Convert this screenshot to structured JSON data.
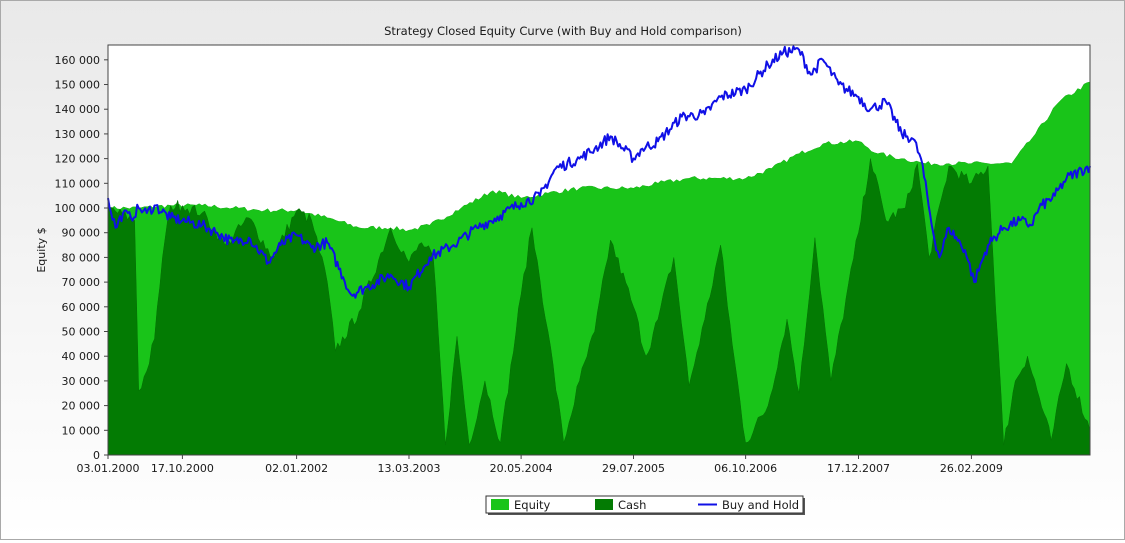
{
  "chart_data": {
    "type": "area",
    "title": "Strategy Closed Equity Curve (with Buy and Hold comparison)",
    "ylabel": "Equity $",
    "xlabel": "",
    "ylim": [
      0,
      166000
    ],
    "yticks": [
      0,
      10000,
      20000,
      30000,
      40000,
      50000,
      60000,
      70000,
      80000,
      90000,
      100000,
      110000,
      120000,
      130000,
      140000,
      150000,
      160000
    ],
    "ytick_labels": [
      "0",
      "10 000",
      "20 000",
      "30 000",
      "40 000",
      "50 000",
      "60 000",
      "70 000",
      "80 000",
      "90 000",
      "100 000",
      "110 000",
      "120 000",
      "130 000",
      "140 000",
      "150 000",
      "160 000"
    ],
    "xlim": [
      "2000-01-03",
      "2010-05-31"
    ],
    "xticks": [
      "2000-01-03",
      "2000-10-17",
      "2002-01-02",
      "2003-03-13",
      "2004-05-20",
      "2005-07-29",
      "2006-10-06",
      "2007-12-17",
      "2009-02-26"
    ],
    "xtick_labels": [
      "03.01.2000",
      "17.10.2000",
      "02.01.2002",
      "13.03.2003",
      "20.05.2004",
      "29.07.2005",
      "06.10.2006",
      "17.12.2007",
      "26.02.2009"
    ],
    "grid": false,
    "legend_position": "bottom-center",
    "colors": {
      "equity": "#19c419",
      "cash": "#037b03",
      "buy_and_hold": "#1010e6",
      "plot_background": "#ffffff",
      "axis": "#444444"
    },
    "series": [
      {
        "name": "Equity",
        "kind": "area",
        "x": [
          "2000-01-03",
          "2000-05-01",
          "2000-09-01",
          "2001-01-01",
          "2001-05-01",
          "2001-09-01",
          "2002-01-02",
          "2002-05-01",
          "2002-09-01",
          "2003-01-01",
          "2003-03-13",
          "2003-06-01",
          "2003-10-01",
          "2004-02-01",
          "2004-05-20",
          "2004-09-01",
          "2005-01-01",
          "2005-05-01",
          "2005-07-29",
          "2005-11-01",
          "2006-03-01",
          "2006-07-01",
          "2006-10-06",
          "2007-01-15",
          "2007-05-01",
          "2007-08-01",
          "2007-12-17",
          "2008-03-01",
          "2008-06-01",
          "2008-09-01",
          "2008-12-01",
          "2009-02-26",
          "2009-05-01",
          "2009-08-01",
          "2009-11-01",
          "2010-02-01",
          "2010-05-31"
        ],
        "values": [
          100000,
          100000,
          101000,
          101000,
          100000,
          99000,
          99000,
          96000,
          92000,
          92000,
          91000,
          93000,
          100000,
          107000,
          104000,
          106000,
          108000,
          108000,
          108000,
          110000,
          112000,
          112000,
          112000,
          116000,
          122000,
          126000,
          127000,
          122000,
          120000,
          118000,
          118000,
          118000,
          118000,
          118000,
          130000,
          143000,
          151000
        ]
      },
      {
        "name": "Cash",
        "kind": "area",
        "x": [
          "2000-01-03",
          "2000-04-15",
          "2000-05-01",
          "2000-06-01",
          "2000-07-01",
          "2000-08-01",
          "2000-09-01",
          "2000-10-17",
          "2001-01-01",
          "2001-04-01",
          "2001-07-01",
          "2001-10-01",
          "2002-01-02",
          "2002-03-01",
          "2002-05-01",
          "2002-06-01",
          "2002-09-01",
          "2003-01-01",
          "2003-03-13",
          "2003-05-01",
          "2003-06-15",
          "2003-08-01",
          "2003-09-15",
          "2003-11-01",
          "2004-01-01",
          "2004-03-01",
          "2004-05-20",
          "2004-07-01",
          "2004-09-01",
          "2004-11-01",
          "2005-01-01",
          "2005-03-01",
          "2005-05-01",
          "2005-07-29",
          "2005-09-15",
          "2005-11-01",
          "2006-01-01",
          "2006-03-01",
          "2006-05-01",
          "2006-07-01",
          "2006-08-15",
          "2006-10-06",
          "2007-01-01",
          "2007-03-15",
          "2007-05-01",
          "2007-07-01",
          "2007-09-01",
          "2007-12-17",
          "2008-02-01",
          "2008-04-01",
          "2008-06-15",
          "2008-08-01",
          "2008-09-15",
          "2008-12-01",
          "2009-02-26",
          "2009-05-01",
          "2009-07-01",
          "2009-08-15",
          "2009-10-01",
          "2010-01-01",
          "2010-03-01",
          "2010-05-31"
        ],
        "values": [
          100000,
          95000,
          26000,
          34000,
          47000,
          80000,
          101000,
          101000,
          98000,
          85000,
          96000,
          80000,
          99000,
          95000,
          70000,
          42000,
          58000,
          92000,
          78000,
          86000,
          80000,
          4000,
          48000,
          4000,
          30000,
          5000,
          65000,
          92000,
          50000,
          5000,
          30000,
          50000,
          87000,
          60000,
          40000,
          55000,
          80000,
          28000,
          55000,
          85000,
          45000,
          5000,
          20000,
          55000,
          25000,
          88000,
          30000,
          90000,
          120000,
          95000,
          100000,
          118000,
          80000,
          117000,
          110000,
          117000,
          4000,
          30000,
          40000,
          6000,
          37000,
          10000
        ]
      },
      {
        "name": "Buy and Hold",
        "kind": "line",
        "x": [
          "2000-01-03",
          "2000-02-01",
          "2000-03-01",
          "2000-04-01",
          "2000-05-01",
          "2000-06-01",
          "2000-07-01",
          "2000-09-01",
          "2000-10-17",
          "2001-01-01",
          "2001-03-01",
          "2001-05-01",
          "2001-07-01",
          "2001-09-15",
          "2001-11-01",
          "2002-01-02",
          "2002-03-01",
          "2002-05-01",
          "2002-07-01",
          "2002-08-01",
          "2002-10-01",
          "2003-01-01",
          "2003-03-13",
          "2003-06-01",
          "2003-09-01",
          "2003-12-01",
          "2004-03-01",
          "2004-05-20",
          "2004-08-01",
          "2004-10-01",
          "2005-01-01",
          "2005-03-01",
          "2005-05-01",
          "2005-07-29",
          "2005-09-01",
          "2005-11-01",
          "2006-02-01",
          "2006-05-01",
          "2006-07-01",
          "2006-10-06",
          "2007-01-01",
          "2007-03-01",
          "2007-05-01",
          "2007-06-15",
          "2007-08-01",
          "2007-10-01",
          "2007-12-17",
          "2008-02-01",
          "2008-04-01",
          "2008-06-01",
          "2008-07-15",
          "2008-08-15",
          "2008-10-01",
          "2008-10-25",
          "2008-12-01",
          "2009-02-01",
          "2009-03-09",
          "2009-05-01",
          "2009-07-01",
          "2009-09-01",
          "2009-10-15",
          "2009-11-15",
          "2010-01-15",
          "2010-03-01",
          "2010-05-31"
        ],
        "values": [
          104000,
          92000,
          98000,
          96000,
          100000,
          98000,
          101000,
          96000,
          95000,
          93000,
          90000,
          86000,
          88000,
          78000,
          85000,
          89000,
          84000,
          86000,
          72000,
          65000,
          68000,
          73000,
          68000,
          80000,
          85000,
          92000,
          97000,
          102000,
          105000,
          116000,
          120000,
          124000,
          129000,
          120000,
          124000,
          127000,
          137000,
          138000,
          145000,
          148000,
          158000,
          163000,
          164000,
          154000,
          160000,
          150000,
          145000,
          140000,
          143000,
          130000,
          128000,
          120000,
          90000,
          80000,
          92000,
          83000,
          70000,
          85000,
          92000,
          95000,
          93000,
          100000,
          105000,
          112000,
          117000
        ]
      }
    ]
  }
}
